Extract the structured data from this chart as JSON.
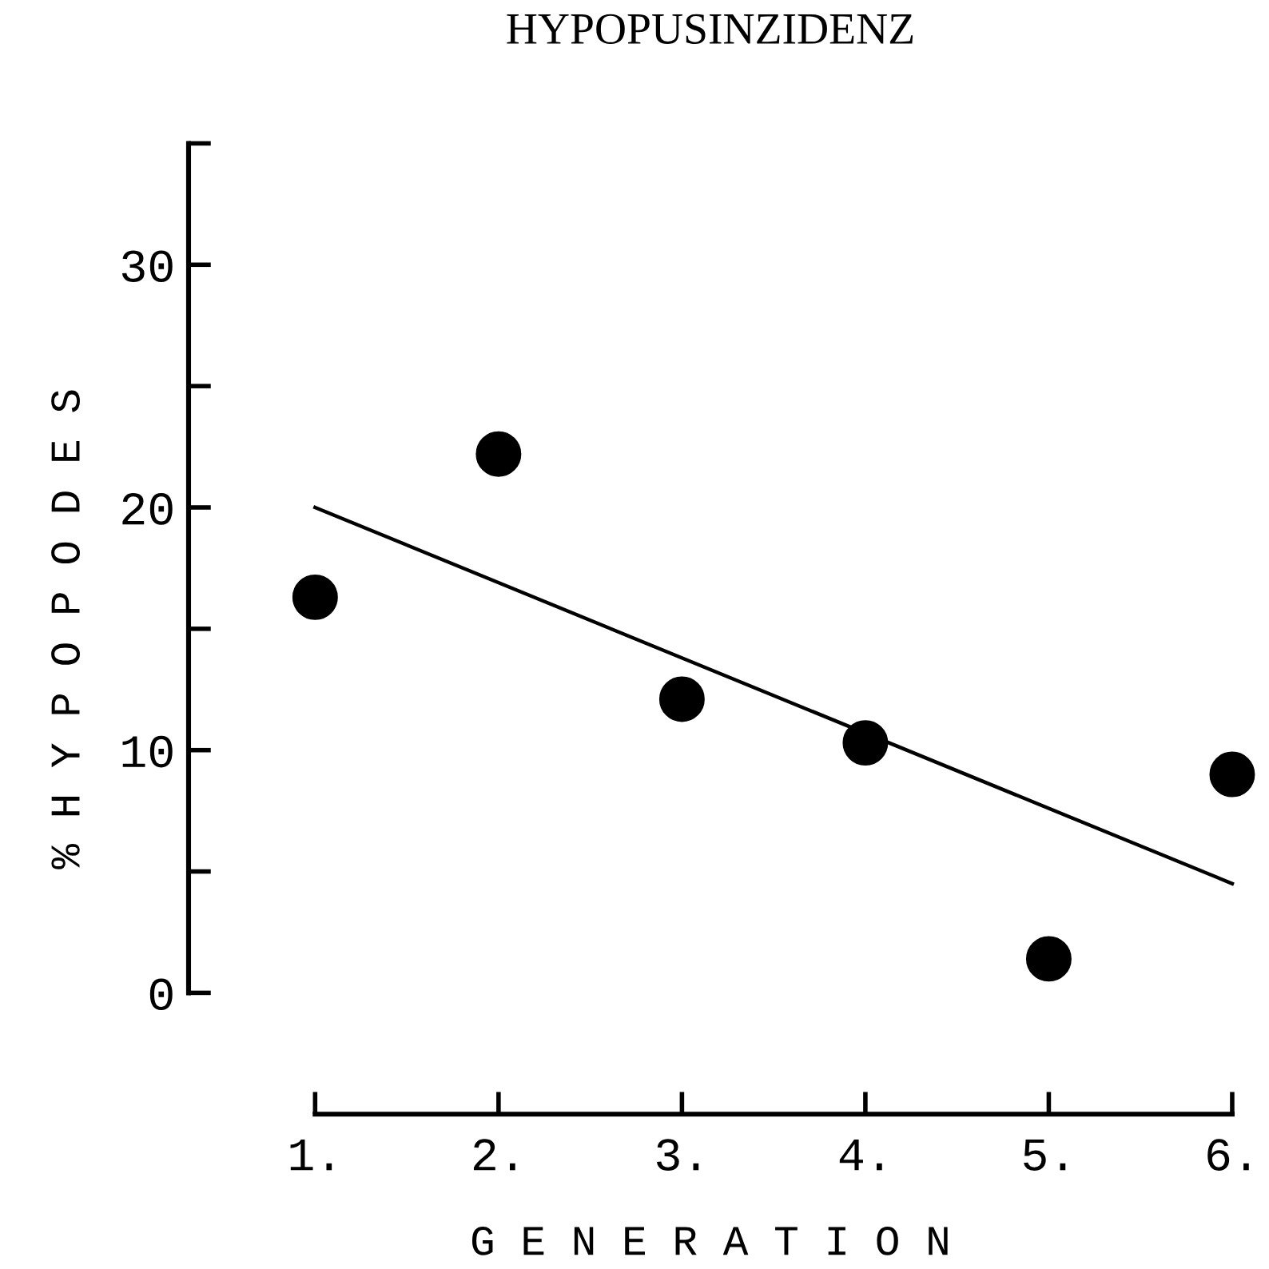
{
  "chart_data": {
    "type": "scatter",
    "title": "HYPOPUSINZIDENZ",
    "xlabel": "G E N E R A T I O N",
    "ylabel": "% H Y P O P O D E S",
    "xlim": [
      0.31,
      6
    ],
    "xticks": [
      {
        "value": 1,
        "label": "1."
      },
      {
        "value": 2,
        "label": "2."
      },
      {
        "value": 3,
        "label": "3."
      },
      {
        "value": 4,
        "label": "4."
      },
      {
        "value": 5,
        "label": "5."
      },
      {
        "value": 6,
        "label": "6."
      }
    ],
    "ylim": [
      -5,
      35
    ],
    "yticks": [
      0,
      {
        "value": 5,
        "label": null
      },
      10,
      {
        "value": 15,
        "label": null
      },
      20,
      {
        "value": 25,
        "label": null
      },
      30,
      {
        "value": 35,
        "label": null
      }
    ],
    "grid": false,
    "legend": false,
    "series": [
      {
        "marker": "circle",
        "color": "#000000",
        "x": [
          1,
          2,
          3,
          4,
          5,
          6
        ],
        "values": [
          16.3,
          22.2,
          12.1,
          10.3,
          1.4,
          9.0
        ]
      },
      {
        "type": "line",
        "color": "#000000",
        "x": [
          1,
          6
        ],
        "values": [
          20.0,
          4.5
        ]
      }
    ]
  }
}
